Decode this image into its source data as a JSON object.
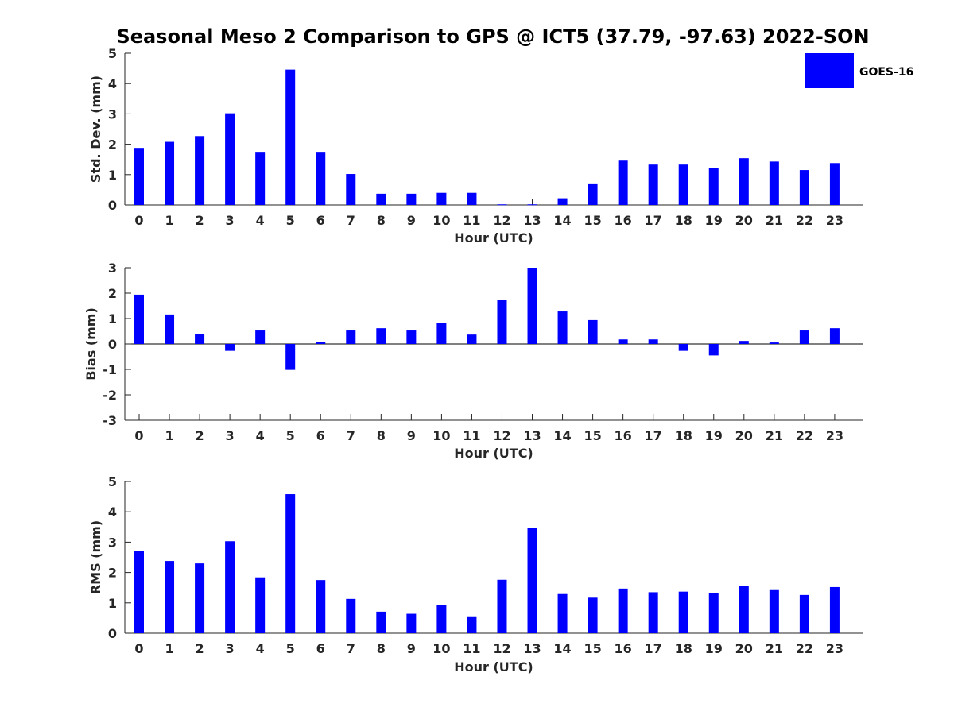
{
  "chart_data": {
    "title": "Seasonal Meso 2 Comparison to GPS @ ICT5 (37.79, -97.63) 2022-SON",
    "legend": {
      "label": "GOES-16",
      "placement": "top-right"
    },
    "series_color": "#0000ff",
    "panels": [
      {
        "type": "bar",
        "ylabel": "Std. Dev. (mm)",
        "xlabel": "Hour (UTC)",
        "ylim": [
          0,
          5
        ],
        "yticks": [
          0,
          1,
          2,
          3,
          4,
          5
        ],
        "grid": false,
        "categories": [
          "0",
          "1",
          "2",
          "3",
          "4",
          "5",
          "6",
          "7",
          "8",
          "9",
          "10",
          "11",
          "12",
          "13",
          "14",
          "15",
          "16",
          "17",
          "18",
          "19",
          "20",
          "21",
          "22",
          "23"
        ],
        "series": [
          {
            "name": "GOES-16",
            "values": [
              1.88,
              2.08,
              2.27,
              3.02,
              1.75,
              4.46,
              1.75,
              1.02,
              0.37,
              0.37,
              0.4,
              0.4,
              0.02,
              0.02,
              0.22,
              0.71,
              1.46,
              1.33,
              1.33,
              1.23,
              1.54,
              1.43,
              1.15,
              1.38
            ]
          }
        ]
      },
      {
        "type": "bar",
        "ylabel": "Bias (mm)",
        "xlabel": "Hour (UTC)",
        "ylim": [
          -3,
          3
        ],
        "yticks": [
          -3,
          -2,
          -1,
          0,
          1,
          2,
          3
        ],
        "grid": false,
        "categories": [
          "0",
          "1",
          "2",
          "3",
          "4",
          "5",
          "6",
          "7",
          "8",
          "9",
          "10",
          "11",
          "12",
          "13",
          "14",
          "15",
          "16",
          "17",
          "18",
          "19",
          "20",
          "21",
          "22",
          "23"
        ],
        "series": [
          {
            "name": "GOES-16",
            "values": [
              1.94,
              1.16,
              0.4,
              -0.27,
              0.53,
              -1.02,
              0.09,
              0.53,
              0.62,
              0.53,
              0.84,
              0.37,
              1.75,
              3.0,
              1.28,
              0.94,
              0.18,
              0.18,
              -0.27,
              -0.45,
              0.12,
              0.06,
              0.53,
              0.62
            ]
          }
        ]
      },
      {
        "type": "bar",
        "ylabel": "RMS (mm)",
        "xlabel": "Hour (UTC)",
        "ylim": [
          0,
          5
        ],
        "yticks": [
          0,
          1,
          2,
          3,
          4,
          5
        ],
        "grid": false,
        "categories": [
          "0",
          "1",
          "2",
          "3",
          "4",
          "5",
          "6",
          "7",
          "8",
          "9",
          "10",
          "11",
          "12",
          "13",
          "14",
          "15",
          "16",
          "17",
          "18",
          "19",
          "20",
          "21",
          "22",
          "23"
        ],
        "series": [
          {
            "name": "GOES-16",
            "values": [
              2.7,
              2.38,
              2.3,
              3.03,
              1.84,
              4.58,
              1.75,
              1.13,
              0.71,
              0.64,
              0.92,
              0.53,
              1.76,
              3.48,
              1.29,
              1.17,
              1.47,
              1.35,
              1.37,
              1.31,
              1.55,
              1.42,
              1.26,
              1.52
            ]
          }
        ]
      }
    ]
  }
}
